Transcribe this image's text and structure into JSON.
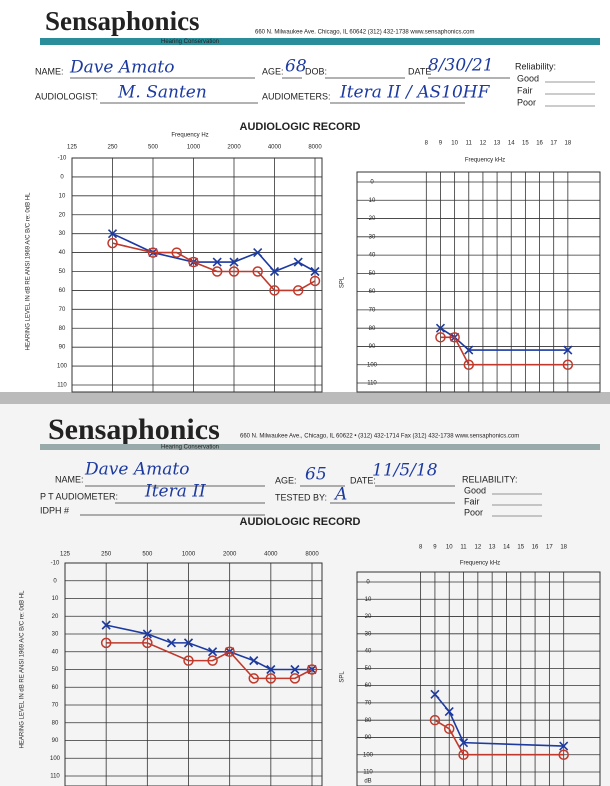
{
  "forms": [
    {
      "header": {
        "brand": "Sensaphonics",
        "tagline": "Hearing Conservation",
        "address": "660 N. Milwaukee Ave. Chicago, IL 60642     (312) 432-1738     www.sensaphonics.com"
      },
      "fields": [
        {
          "label": "NAME:",
          "value": "Dave Amato"
        },
        {
          "label": "AGE:",
          "value": "68"
        },
        {
          "label": "DOB:"
        },
        {
          "label": "DATE",
          "value": "8/30/21"
        },
        {
          "label": "AUDIOLOGIST:",
          "value": "M. Santen"
        },
        {
          "label": "AUDIOMETERS:",
          "value": "Itera II / AS10HF"
        }
      ],
      "reliability": {
        "label": "Reliability:",
        "options": [
          "Good",
          "Fair",
          "Poor"
        ]
      },
      "record_title": "AUDIOLOGIC RECORD",
      "audiogram": {
        "type": "line",
        "x_label": "Frequency Hz",
        "y_label": "HEARING LEVEL IN dB RE ANSI 1969 A/C B/C re: 0dB HL",
        "log_x": true,
        "xlim": [
          125,
          8000
        ],
        "xticks": [
          125,
          250,
          500,
          1000,
          2000,
          4000,
          8000
        ],
        "ylim": [
          -10,
          110
        ],
        "yticks": [
          -10,
          0,
          10,
          20,
          30,
          40,
          50,
          60,
          70,
          80,
          90,
          100,
          110
        ],
        "series": [
          {
            "name": "Left",
            "marker": "x",
            "color": "#1c3aa0",
            "x": [
              250,
              500,
              1000,
              1500,
              2000,
              3000,
              4000,
              6000,
              8000
            ],
            "values": [
              30,
              40,
              45,
              45,
              45,
              40,
              50,
              45,
              50
            ]
          },
          {
            "name": "Right",
            "marker": "o",
            "color": "#c0392b",
            "x": [
              250,
              500,
              750,
              1000,
              1500,
              2000,
              3000,
              4000,
              6000,
              8000
            ],
            "values": [
              35,
              40,
              40,
              45,
              50,
              50,
              50,
              60,
              60,
              55
            ]
          }
        ]
      },
      "hf_chart": {
        "type": "line",
        "x_label": "Frequency kHz",
        "y_label": "SPL",
        "xlim": [
          6,
          19
        ],
        "xticks": [
          8,
          9,
          10,
          11,
          12,
          13,
          14,
          15,
          16,
          17,
          18
        ],
        "ylim": [
          0,
          110
        ],
        "yticks": [
          0,
          10,
          20,
          30,
          40,
          50,
          60,
          70,
          80,
          90,
          100,
          110
        ],
        "series": [
          {
            "name": "Left",
            "marker": "x",
            "color": "#1c3aa0",
            "x": [
              9,
              10,
              11,
              18
            ],
            "values": [
              80,
              85,
              92,
              92
            ]
          },
          {
            "name": "Right",
            "marker": "o",
            "color": "#c0392b",
            "x": [
              9,
              10,
              11,
              18
            ],
            "values": [
              85,
              85,
              100,
              100
            ]
          }
        ]
      }
    },
    {
      "header": {
        "brand": "Sensaphonics",
        "tagline": "Hearing Conservation",
        "address": "660 N. Milwaukee Ave., Chicago, IL 60622 • (312) 432-1714   Fax (312) 432-1738   www.sensaphonics.com"
      },
      "fields": [
        {
          "label": "NAME:",
          "value": "Dave Amato"
        },
        {
          "label": "AGE:",
          "value": "65"
        },
        {
          "label": "DATE:",
          "value": "11/5/18"
        },
        {
          "label": "P T AUDIOMETER:",
          "value": "Itera II"
        },
        {
          "label": "TESTED BY:",
          "value": "A"
        },
        {
          "label": "IDPH #"
        }
      ],
      "reliability": {
        "label": "RELIABILITY:",
        "options": [
          "Good",
          "Fair",
          "Poor"
        ]
      },
      "record_title": "AUDIOLOGIC RECORD",
      "audiogram": {
        "type": "line",
        "x_label": "",
        "y_label": "HEARING LEVEL IN dB RE ANSI 1969 A/C B/C re: 0dB HL",
        "log_x": true,
        "xlim": [
          125,
          8000
        ],
        "xticks": [
          125,
          250,
          500,
          1000,
          2000,
          4000,
          8000
        ],
        "ylim": [
          -10,
          110
        ],
        "yticks": [
          -10,
          0,
          10,
          20,
          30,
          40,
          50,
          60,
          70,
          80,
          90,
          100,
          110
        ],
        "series": [
          {
            "name": "Left",
            "marker": "x",
            "color": "#1c3aa0",
            "x": [
              250,
              500,
              750,
              1000,
              1500,
              2000,
              3000,
              4000,
              6000,
              8000
            ],
            "values": [
              25,
              30,
              35,
              35,
              40,
              40,
              45,
              50,
              50,
              50
            ]
          },
          {
            "name": "Right",
            "marker": "o",
            "color": "#c0392b",
            "x": [
              250,
              500,
              1000,
              1500,
              2000,
              3000,
              4000,
              6000,
              8000
            ],
            "values": [
              35,
              35,
              45,
              45,
              40,
              55,
              55,
              55,
              50
            ]
          }
        ]
      },
      "hf_chart": {
        "type": "line",
        "x_label": "Frequency kHz",
        "y_label": "SPL",
        "y_unit": "dB",
        "xlim": [
          6,
          19
        ],
        "xticks": [
          8,
          9,
          10,
          11,
          12,
          13,
          14,
          15,
          16,
          17,
          18
        ],
        "ylim": [
          0,
          110
        ],
        "yticks": [
          0,
          10,
          20,
          30,
          40,
          50,
          60,
          70,
          80,
          90,
          100,
          110
        ],
        "series": [
          {
            "name": "Left",
            "marker": "x",
            "color": "#1c3aa0",
            "x": [
              9,
              10,
              11,
              18
            ],
            "values": [
              65,
              75,
              93,
              95
            ]
          },
          {
            "name": "Right",
            "marker": "o",
            "color": "#c0392b",
            "x": [
              9,
              10,
              11,
              18
            ],
            "values": [
              80,
              85,
              100,
              100
            ]
          }
        ]
      }
    }
  ]
}
